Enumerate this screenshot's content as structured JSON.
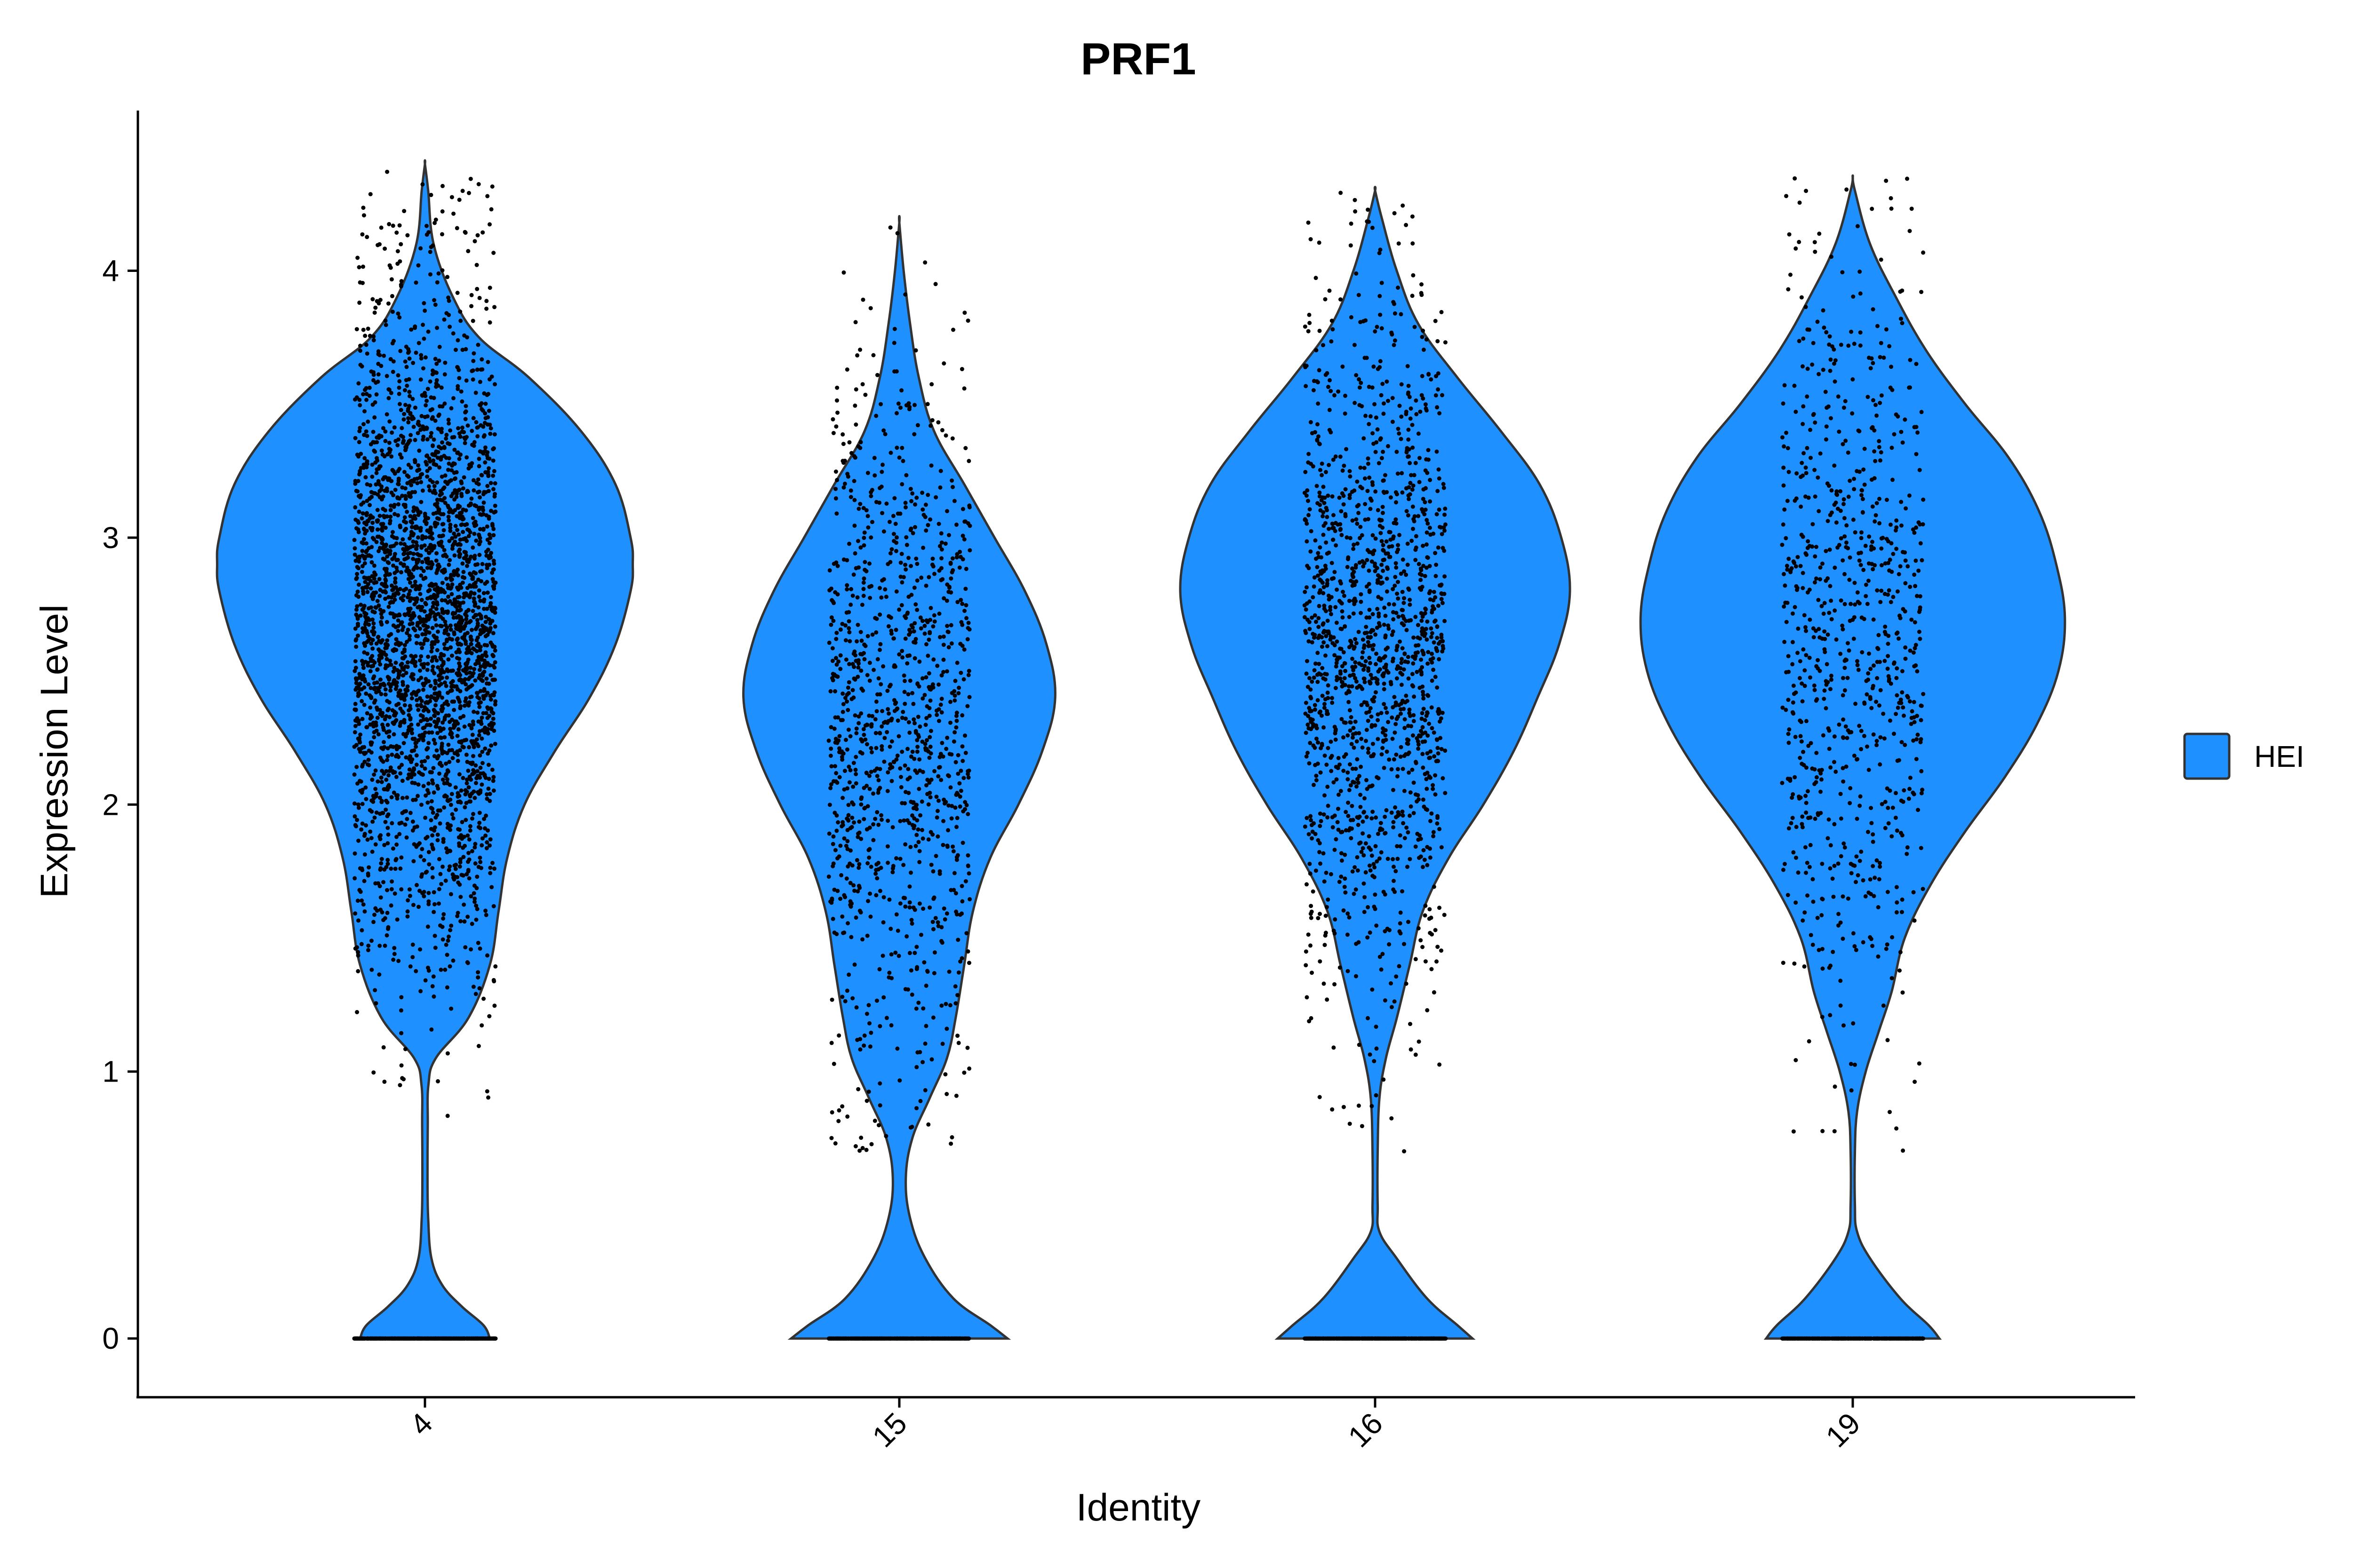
{
  "chart_data": {
    "type": "violin",
    "title": "PRF1",
    "xlabel": "Identity",
    "ylabel": "Expression Level",
    "ylim": [
      -0.22,
      4.6
    ],
    "yticks": [
      0,
      1,
      2,
      3,
      4
    ],
    "categories": [
      "4",
      "15",
      "16",
      "19"
    ],
    "fill_color": "#1E90FF",
    "legend": {
      "position": "right",
      "entries": [
        {
          "label": "HEI",
          "color": "#1E90FF"
        }
      ]
    },
    "grid": false,
    "violins": [
      {
        "category": "4",
        "max": 4.4,
        "profile": [
          [
            0,
            0.3
          ],
          [
            0.05,
            0.27
          ],
          [
            0.12,
            0.17
          ],
          [
            0.2,
            0.08
          ],
          [
            0.3,
            0.03
          ],
          [
            0.45,
            0.015
          ],
          [
            0.6,
            0.012
          ],
          [
            0.8,
            0.013
          ],
          [
            0.95,
            0.016
          ],
          [
            1.05,
            0.05
          ],
          [
            1.2,
            0.2
          ],
          [
            1.4,
            0.3
          ],
          [
            1.6,
            0.34
          ],
          [
            1.8,
            0.38
          ],
          [
            2.0,
            0.46
          ],
          [
            2.2,
            0.6
          ],
          [
            2.4,
            0.76
          ],
          [
            2.6,
            0.88
          ],
          [
            2.8,
            0.95
          ],
          [
            2.9,
            0.96
          ],
          [
            3.0,
            0.95
          ],
          [
            3.2,
            0.88
          ],
          [
            3.4,
            0.72
          ],
          [
            3.6,
            0.48
          ],
          [
            3.75,
            0.25
          ],
          [
            3.9,
            0.13
          ],
          [
            4.1,
            0.04
          ],
          [
            4.3,
            0.015
          ],
          [
            4.4,
            0.0
          ]
        ],
        "points_zero": 800,
        "points_nonzero": 3000,
        "points_mean": 2.7,
        "points_sd": 0.6,
        "jitter_width": 0.15
      },
      {
        "category": "15",
        "max": 4.18,
        "profile": [
          [
            0,
            0.5
          ],
          [
            0.05,
            0.42
          ],
          [
            0.15,
            0.25
          ],
          [
            0.3,
            0.12
          ],
          [
            0.45,
            0.05
          ],
          [
            0.6,
            0.03
          ],
          [
            0.75,
            0.06
          ],
          [
            0.9,
            0.14
          ],
          [
            1.05,
            0.22
          ],
          [
            1.2,
            0.26
          ],
          [
            1.4,
            0.3
          ],
          [
            1.6,
            0.34
          ],
          [
            1.8,
            0.42
          ],
          [
            2.0,
            0.55
          ],
          [
            2.2,
            0.66
          ],
          [
            2.4,
            0.72
          ],
          [
            2.6,
            0.68
          ],
          [
            2.8,
            0.58
          ],
          [
            3.0,
            0.44
          ],
          [
            3.2,
            0.3
          ],
          [
            3.4,
            0.16
          ],
          [
            3.6,
            0.09
          ],
          [
            3.8,
            0.05
          ],
          [
            4.0,
            0.02
          ],
          [
            4.18,
            0.0
          ]
        ],
        "points_zero": 500,
        "points_nonzero": 1100,
        "points_mean": 2.3,
        "points_sd": 0.65,
        "jitter_width": 0.15
      },
      {
        "category": "16",
        "max": 4.3,
        "profile": [
          [
            0,
            0.45
          ],
          [
            0.05,
            0.38
          ],
          [
            0.15,
            0.24
          ],
          [
            0.3,
            0.1
          ],
          [
            0.4,
            0.02
          ],
          [
            0.5,
            0.012
          ],
          [
            0.7,
            0.012
          ],
          [
            0.9,
            0.02
          ],
          [
            1.05,
            0.05
          ],
          [
            1.2,
            0.1
          ],
          [
            1.4,
            0.16
          ],
          [
            1.6,
            0.22
          ],
          [
            1.8,
            0.34
          ],
          [
            2.0,
            0.5
          ],
          [
            2.2,
            0.64
          ],
          [
            2.4,
            0.75
          ],
          [
            2.6,
            0.85
          ],
          [
            2.8,
            0.9
          ],
          [
            3.0,
            0.86
          ],
          [
            3.2,
            0.76
          ],
          [
            3.4,
            0.58
          ],
          [
            3.6,
            0.38
          ],
          [
            3.8,
            0.2
          ],
          [
            4.0,
            0.1
          ],
          [
            4.2,
            0.03
          ],
          [
            4.3,
            0.0
          ]
        ],
        "points_zero": 500,
        "points_nonzero": 1500,
        "points_mean": 2.6,
        "points_sd": 0.65,
        "jitter_width": 0.15
      },
      {
        "category": "19",
        "max": 4.35,
        "profile": [
          [
            0,
            0.4
          ],
          [
            0.05,
            0.35
          ],
          [
            0.15,
            0.22
          ],
          [
            0.3,
            0.08
          ],
          [
            0.4,
            0.02
          ],
          [
            0.5,
            0.01
          ],
          [
            0.7,
            0.01
          ],
          [
            0.85,
            0.02
          ],
          [
            1.0,
            0.06
          ],
          [
            1.15,
            0.12
          ],
          [
            1.3,
            0.18
          ],
          [
            1.5,
            0.24
          ],
          [
            1.7,
            0.36
          ],
          [
            1.9,
            0.52
          ],
          [
            2.1,
            0.7
          ],
          [
            2.3,
            0.85
          ],
          [
            2.5,
            0.95
          ],
          [
            2.7,
            0.98
          ],
          [
            2.9,
            0.94
          ],
          [
            3.1,
            0.86
          ],
          [
            3.3,
            0.72
          ],
          [
            3.5,
            0.52
          ],
          [
            3.7,
            0.34
          ],
          [
            3.9,
            0.2
          ],
          [
            4.1,
            0.08
          ],
          [
            4.3,
            0.01
          ],
          [
            4.35,
            0.0
          ]
        ],
        "points_zero": 350,
        "points_nonzero": 800,
        "points_mean": 2.6,
        "points_sd": 0.75,
        "jitter_width": 0.15
      }
    ]
  }
}
